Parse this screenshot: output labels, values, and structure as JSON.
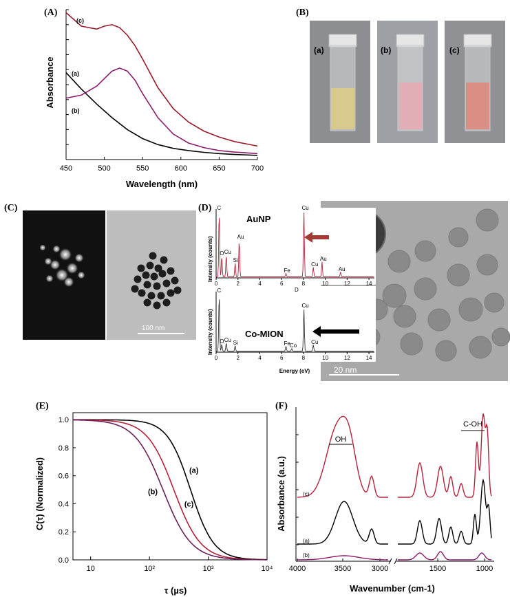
{
  "panels": {
    "A": {
      "label": "(A)",
      "chart_data": {
        "type": "line",
        "xlabel": "Wavelength (nm)",
        "ylabel": "Absorbance",
        "xlim": [
          450,
          700
        ],
        "ylim": [
          0,
          1
        ],
        "xticks": [
          450,
          500,
          550,
          600,
          650,
          700
        ],
        "series": [
          {
            "name": "(a)",
            "color": "#000000",
            "x": [
              450,
              470,
              490,
              510,
              530,
              550,
              570,
              590,
              610,
              630,
              650,
              670,
              700
            ],
            "y": [
              0.58,
              0.47,
              0.37,
              0.28,
              0.2,
              0.14,
              0.1,
              0.075,
              0.06,
              0.048,
              0.04,
              0.034,
              0.028
            ]
          },
          {
            "name": "(b)",
            "color": "#8b1a6b",
            "x": [
              450,
              470,
              490,
              500,
              510,
              520,
              530,
              540,
              550,
              570,
              590,
              610,
              630,
              650,
              670,
              700
            ],
            "y": [
              0.41,
              0.43,
              0.49,
              0.54,
              0.59,
              0.61,
              0.59,
              0.53,
              0.44,
              0.28,
              0.17,
              0.11,
              0.08,
              0.06,
              0.05,
              0.04
            ]
          },
          {
            "name": "(c)",
            "color": "#9a1c2a",
            "x": [
              450,
              470,
              490,
              500,
              510,
              520,
              530,
              540,
              550,
              570,
              590,
              610,
              630,
              650,
              670,
              700
            ],
            "y": [
              0.98,
              0.89,
              0.87,
              0.89,
              0.9,
              0.88,
              0.83,
              0.76,
              0.67,
              0.48,
              0.34,
              0.25,
              0.19,
              0.15,
              0.12,
              0.09
            ]
          }
        ]
      }
    },
    "B": {
      "label": "(B)",
      "vials": [
        {
          "label": "(a)",
          "liquid_color": "#d8c98e"
        },
        {
          "label": "(b)",
          "liquid_color": "#e0aeb4"
        },
        {
          "label": "(c)",
          "liquid_color": "#d98f84"
        }
      ]
    },
    "C": {
      "label": "(C)",
      "scale_bar": "100 nm"
    },
    "D": {
      "label": "(D)",
      "scale_bar": "20 nm",
      "marker": "D",
      "spectra": [
        {
          "title": "AuNP",
          "arrow_color": "#a33a36",
          "ylabel": "Intensity (counts)",
          "peak_labels": [
            "C",
            "O",
            "Cu",
            "Si",
            "Au",
            "Fe",
            "Cu",
            "Cu",
            "Au",
            "Au"
          ],
          "xticks": [
            "0",
            "2",
            "4",
            "6",
            "8",
            "10",
            "12",
            "14"
          ]
        },
        {
          "title": "Co-MION",
          "arrow_color": "#000000",
          "ylabel": "Intensity (counts)",
          "peak_labels": [
            "C",
            "O",
            "Cu",
            "Si",
            "Fe",
            "Co",
            "Cu",
            "Cu"
          ],
          "xticks": [
            "0",
            "2",
            "4",
            "6",
            "8",
            "10",
            "12",
            "14"
          ]
        }
      ],
      "xlabel": "Energy (eV)"
    },
    "E": {
      "label": "(E)",
      "chart_data": {
        "type": "line",
        "xlabel": "τ (µs)",
        "ylabel": "C(τ) (Normalized)",
        "xscale": "log",
        "xlim": [
          5,
          10000
        ],
        "ylim": [
          0,
          1.05
        ],
        "yticks": [
          "0.0",
          "0.2",
          "0.4",
          "0.6",
          "0.8",
          "1.0"
        ],
        "xticks": [
          "10",
          "10²",
          "10³",
          "10⁴"
        ],
        "series": [
          {
            "name": "(a)",
            "color": "#000000",
            "tau_half": 500,
            "steep": 2.2
          },
          {
            "name": "(c)",
            "color": "#b5213a",
            "tau_half": 260,
            "steep": 1.9
          },
          {
            "name": "(b)",
            "color": "#6b1f5a",
            "tau_half": 170,
            "steep": 1.8
          }
        ]
      }
    },
    "F": {
      "label": "(F)",
      "chart_data": {
        "type": "line",
        "xlabel": "Wavenumber (cm-1)",
        "ylabel": "Absorbance (a.u.)",
        "xticks": [
          "4000",
          "3500",
          "3000",
          "1500",
          "1000"
        ],
        "annotations": [
          "OH",
          "C-OH"
        ],
        "series": [
          {
            "name": "(c)",
            "color": "#b5213a"
          },
          {
            "name": "(a)",
            "color": "#000000"
          },
          {
            "name": "(b)",
            "color": "#8b1a6b"
          }
        ]
      }
    }
  }
}
